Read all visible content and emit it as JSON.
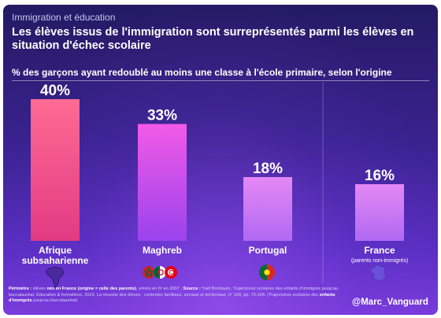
{
  "header": {
    "kicker": "Immigration et éducation",
    "title": "Les élèves issus de l'immigration sont surreprésentés parmi les élèves en situation d'échec scolaire",
    "subtitle": "% des garçons ayant redoublé au moins une classe à l'école primaire, selon l'origine"
  },
  "chart_data": {
    "type": "bar",
    "categories": [
      "Afrique subsaharienne",
      "Maghreb",
      "Portugal",
      "France"
    ],
    "category_notes": [
      "",
      "",
      "",
      "(parents non-immigrés)"
    ],
    "values": [
      40,
      33,
      18,
      16
    ],
    "value_labels": [
      "40%",
      "33%",
      "18%",
      "16%"
    ],
    "unit": "%",
    "ylim": [
      0,
      40
    ],
    "grid": false,
    "highlight_first": true,
    "separator_before_last": true,
    "colors": {
      "highlight_top": "#ff6b93",
      "highlight_bottom": "#e23a84",
      "bar_top": "#f25ae6",
      "bar_bottom": "#9a43ee",
      "bar_light_top": "#e488f5",
      "bar_light_bottom": "#b069f2"
    }
  },
  "icons": [
    "africa-map-icon",
    "maghreb-flags-icon",
    "portugal-flag-icon",
    "france-map-icon"
  ],
  "footnote": {
    "perimetre_label": "Périmètre :",
    "perimetre_a": " élèves ",
    "perimetre_b": "nés en France (origine = celle des parents)",
    "perimetre_c": ", entrés en 6ᵉ en 2007 ; ",
    "source_label": "Source :",
    "source_a": " Yaël Brinbaum. Trajectoires scolaires des enfants d'immigrés jusqu'au baccalauréat. Éducation & formations, 2019. La réussite des élèves : contextes familiaux, sociaux et territoriaux, n° 100, pp. 73-104. (Trajectoires scolaires des ",
    "source_b": "enfants d'immigrés",
    "source_c": " jusqu'au baccalauréat)"
  },
  "handle": "@Marc_Vanguard"
}
